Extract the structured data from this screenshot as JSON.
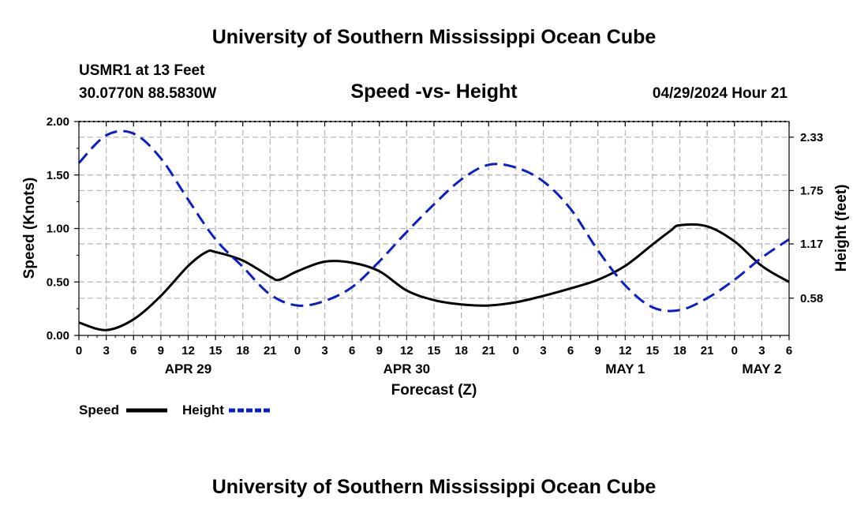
{
  "header": {
    "title": "University of Southern Mississippi Ocean Cube",
    "station": "USMR1 at 13 Feet",
    "location": "30.0770N  88.5830W",
    "chart_title": "Speed -vs- Height",
    "datetime": "04/29/2024 Hour 21"
  },
  "footer": {
    "title": "University of Southern Mississippi Ocean Cube"
  },
  "legend": {
    "speed_label": "Speed",
    "height_label": "Height"
  },
  "colors": {
    "speed": "#000000",
    "height": "#0b1fc7",
    "grid": "#b4b4b4"
  },
  "chart_data": {
    "type": "line",
    "title": "Speed -vs- Height",
    "xlabel": "Forecast (Z)",
    "ylabel": "Speed (Knots)",
    "y2label": "Height (feet)",
    "xlim": [
      0,
      78
    ],
    "ylim": [
      0,
      2.0
    ],
    "y2lim": [
      0.175,
      2.5
    ],
    "x_ticks": [
      0,
      3,
      6,
      9,
      12,
      15,
      18,
      21,
      24,
      27,
      30,
      33,
      36,
      39,
      42,
      45,
      48,
      51,
      54,
      57,
      60,
      63,
      66,
      69,
      72,
      75,
      78
    ],
    "x_tick_labels": [
      "0",
      "3",
      "6",
      "9",
      "12",
      "15",
      "18",
      "21",
      "0",
      "3",
      "6",
      "9",
      "12",
      "15",
      "18",
      "21",
      "0",
      "3",
      "6",
      "9",
      "12",
      "15",
      "18",
      "21",
      "0",
      "3",
      "6"
    ],
    "date_labels": [
      {
        "x": 12,
        "label": "APR 29"
      },
      {
        "x": 36,
        "label": "APR 30"
      },
      {
        "x": 60,
        "label": "MAY 1"
      },
      {
        "x": 75,
        "label": "MAY 2"
      }
    ],
    "y_ticks": [
      0,
      0.5,
      1.0,
      1.5,
      2.0
    ],
    "y_tick_labels": [
      "0.00",
      "0.50",
      "1.00",
      "1.50",
      "2.00"
    ],
    "y2_ticks": [
      0.58,
      1.17,
      1.75,
      2.33
    ],
    "y2_tick_labels": [
      "0.58",
      "1.17",
      "1.75",
      "2.33"
    ],
    "grid": true,
    "legend_position": "bottom-left",
    "series": [
      {
        "name": "Speed",
        "axis": "left",
        "style": "solid",
        "x": [
          0,
          3,
          6,
          9,
          12,
          14,
          15,
          18,
          21,
          22,
          24,
          27,
          30,
          33,
          36,
          39,
          42,
          45,
          48,
          51,
          54,
          57,
          60,
          63,
          65,
          66,
          69,
          72,
          75,
          78
        ],
        "values": [
          0.12,
          0.05,
          0.15,
          0.37,
          0.65,
          0.78,
          0.78,
          0.7,
          0.55,
          0.52,
          0.6,
          0.69,
          0.68,
          0.6,
          0.42,
          0.33,
          0.29,
          0.28,
          0.31,
          0.37,
          0.44,
          0.52,
          0.65,
          0.85,
          0.98,
          1.03,
          1.02,
          0.88,
          0.65,
          0.5
        ]
      },
      {
        "name": "Height",
        "axis": "right",
        "style": "dashed",
        "x": [
          0,
          3,
          6,
          9,
          12,
          15,
          18,
          21,
          24,
          27,
          30,
          33,
          36,
          39,
          42,
          45,
          48,
          51,
          54,
          57,
          60,
          63,
          66,
          69,
          72,
          75,
          78
        ],
        "values": [
          2.05,
          2.35,
          2.37,
          2.1,
          1.65,
          1.22,
          0.92,
          0.62,
          0.5,
          0.55,
          0.7,
          0.98,
          1.3,
          1.6,
          1.87,
          2.03,
          2.0,
          1.85,
          1.55,
          1.1,
          0.72,
          0.48,
          0.45,
          0.58,
          0.78,
          1.02,
          1.22
        ]
      }
    ]
  }
}
